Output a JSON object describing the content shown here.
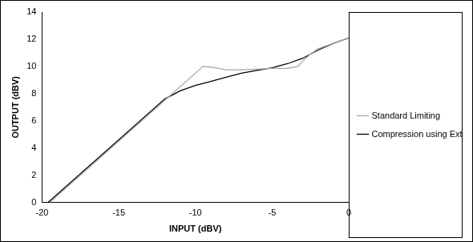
{
  "chart_data": {
    "type": "line",
    "x_label": "INPUT (dBV)",
    "y_label": "OUTPUT (dBV)",
    "xlim": [
      -20,
      0
    ],
    "xticks": [
      -20,
      -15,
      -10,
      -5,
      0
    ],
    "ylim": [
      0,
      14
    ],
    "yticks": [
      0,
      2,
      4,
      6,
      8,
      10,
      12,
      14
    ],
    "grid": false,
    "legend": "right",
    "series": [
      {
        "name": "Standard Limiting",
        "color": "#a6a6a6",
        "marker": "none",
        "line_style": "solid",
        "x": [
          -19.5,
          -15,
          -12,
          -10,
          -9.5,
          -9,
          -8,
          -7,
          -6,
          -5,
          -4,
          -3.3,
          -3,
          -2.5,
          -2,
          -1,
          0
        ],
        "values": [
          0,
          4.5,
          7.5,
          9.5,
          10.0,
          9.95,
          9.75,
          9.75,
          9.8,
          9.85,
          9.85,
          10.0,
          10.4,
          10.9,
          11.3,
          11.7,
          12.1
        ]
      },
      {
        "name": "Compression using External Circuitry",
        "color": "#000000",
        "marker": "none",
        "line_style": "solid",
        "x": [
          -19.6,
          -15,
          -12,
          -11,
          -10,
          -9,
          -8,
          -7,
          -6,
          -5,
          -4,
          -3,
          -2,
          -1,
          0
        ],
        "values": [
          0,
          4.6,
          7.6,
          8.2,
          8.6,
          8.9,
          9.2,
          9.5,
          9.7,
          9.9,
          10.2,
          10.6,
          11.2,
          11.7,
          12.1
        ]
      }
    ]
  }
}
